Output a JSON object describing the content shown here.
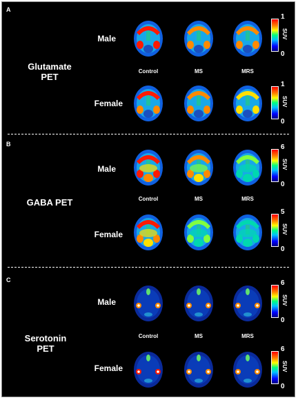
{
  "panels": [
    {
      "letter": "A",
      "tracer": "Glutamate\nPET",
      "rows": [
        {
          "sex": "Male",
          "scale_max": "1",
          "scale_min": "0",
          "unit": "SUV"
        },
        {
          "sex": "Female",
          "scale_max": "1",
          "scale_min": "0",
          "unit": "SUV"
        }
      ],
      "conditions": [
        "Control",
        "MS",
        "MRS"
      ],
      "uptake": [
        [
          0.95,
          0.85,
          0.8
        ],
        [
          0.9,
          0.8,
          0.7
        ]
      ],
      "pattern": "cortex"
    },
    {
      "letter": "B",
      "tracer": "GABA PET",
      "rows": [
        {
          "sex": "Male",
          "scale_max": "6",
          "scale_min": "0",
          "unit": "SUV"
        },
        {
          "sex": "Female",
          "scale_max": "5",
          "scale_min": "0",
          "unit": "SUV"
        }
      ],
      "conditions": [
        "Control",
        "MS",
        "MRS"
      ],
      "uptake": [
        [
          0.95,
          0.8,
          0.45
        ],
        [
          0.9,
          0.55,
          0.4
        ]
      ],
      "pattern": "diffuse"
    },
    {
      "letter": "C",
      "tracer": "Serotonin\nPET",
      "rows": [
        {
          "sex": "Male",
          "scale_max": "6",
          "scale_min": "0",
          "unit": "SUV"
        },
        {
          "sex": "Female",
          "scale_max": "6",
          "scale_min": "0",
          "unit": "SUV"
        }
      ],
      "conditions": [
        "Control",
        "MS",
        "MRS"
      ],
      "uptake": [
        [
          0.6,
          0.55,
          0.55
        ],
        [
          0.65,
          0.6,
          0.6
        ]
      ],
      "pattern": "low"
    }
  ],
  "colors": {
    "background": "#000000",
    "text": "#ffffff"
  }
}
